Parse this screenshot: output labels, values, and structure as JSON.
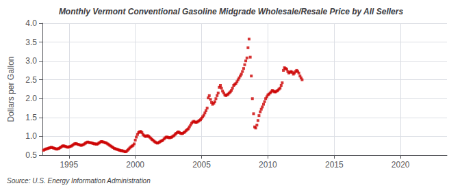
{
  "chart_data": {
    "type": "scatter",
    "title": "Monthly Vermont Conventional Gasoline Midgrade Wholesale/Resale Price by All Sellers",
    "ylabel": "Dollars per Gallon",
    "annotations": [
      "Source: U.S. Energy Information Administration"
    ],
    "color": "#cc0000",
    "marker": "square",
    "grid": true,
    "xlim": [
      1993.0,
      2023.5
    ],
    "xticks": [
      1995,
      2000,
      2005,
      2010,
      2015,
      2020
    ],
    "ylim": [
      0.5,
      4.0
    ],
    "yticks": [
      0.5,
      {
        "value": 1.0,
        "label": "1.0"
      },
      1.5,
      {
        "value": 2.0,
        "label": "2.0"
      },
      2.5,
      {
        "value": 3.0,
        "label": "3.0"
      },
      3.5,
      {
        "value": 4.0,
        "label": "4.0"
      }
    ],
    "x": [
      1993.08,
      1993.17,
      1993.25,
      1993.33,
      1993.42,
      1993.5,
      1993.58,
      1993.67,
      1993.75,
      1993.83,
      1993.92,
      1994.0,
      1994.08,
      1994.17,
      1994.25,
      1994.33,
      1994.42,
      1994.5,
      1994.58,
      1994.67,
      1994.75,
      1994.83,
      1994.92,
      1995.0,
      1995.08,
      1995.17,
      1995.25,
      1995.33,
      1995.42,
      1995.5,
      1995.58,
      1995.67,
      1995.75,
      1995.83,
      1995.92,
      1996.0,
      1996.08,
      1996.17,
      1996.25,
      1996.33,
      1996.42,
      1996.5,
      1996.58,
      1996.67,
      1996.75,
      1996.83,
      1996.92,
      1997.0,
      1997.08,
      1997.17,
      1997.25,
      1997.33,
      1997.42,
      1997.5,
      1997.58,
      1997.67,
      1997.75,
      1997.83,
      1997.92,
      1998.0,
      1998.08,
      1998.17,
      1998.25,
      1998.33,
      1998.42,
      1998.5,
      1998.58,
      1998.67,
      1998.75,
      1998.83,
      1998.92,
      1999.0,
      1999.08,
      1999.17,
      1999.25,
      1999.33,
      1999.42,
      1999.5,
      1999.58,
      1999.67,
      1999.75,
      1999.83,
      1999.92,
      2000.0,
      2000.08,
      2000.17,
      2000.25,
      2000.33,
      2000.42,
      2000.5,
      2000.58,
      2000.67,
      2000.75,
      2000.83,
      2000.92,
      2001.0,
      2001.08,
      2001.17,
      2001.25,
      2001.33,
      2001.42,
      2001.5,
      2001.58,
      2001.67,
      2001.75,
      2001.83,
      2001.92,
      2002.0,
      2002.08,
      2002.17,
      2002.25,
      2002.33,
      2002.42,
      2002.5,
      2002.58,
      2002.67,
      2002.75,
      2002.83,
      2002.92,
      2003.0,
      2003.08,
      2003.17,
      2003.25,
      2003.33,
      2003.42,
      2003.5,
      2003.58,
      2003.67,
      2003.75,
      2003.83,
      2003.92,
      2004.0,
      2004.08,
      2004.17,
      2004.25,
      2004.33,
      2004.42,
      2004.5,
      2004.58,
      2004.67,
      2004.75,
      2004.83,
      2004.92,
      2005.0,
      2005.08,
      2005.17,
      2005.25,
      2005.33,
      2005.42,
      2005.5,
      2005.58,
      2005.67,
      2005.75,
      2005.83,
      2005.92,
      2006.0,
      2006.08,
      2006.17,
      2006.25,
      2006.33,
      2006.42,
      2006.5,
      2006.58,
      2006.67,
      2006.75,
      2006.83,
      2006.92,
      2007.0,
      2007.08,
      2007.17,
      2007.25,
      2007.33,
      2007.42,
      2007.5,
      2007.58,
      2007.67,
      2007.75,
      2007.83,
      2007.92,
      2008.0,
      2008.08,
      2008.17,
      2008.25,
      2008.33,
      2008.42,
      2008.5,
      2008.58,
      2008.67,
      2008.75,
      2008.83,
      2008.92,
      2009.0,
      2009.08,
      2009.17,
      2009.25,
      2009.33,
      2009.42,
      2009.5,
      2009.58,
      2009.67,
      2009.75,
      2009.83,
      2009.92,
      2010.0,
      2010.08,
      2010.17,
      2010.25,
      2010.33,
      2010.42,
      2010.5,
      2010.58,
      2010.67,
      2010.75,
      2010.83,
      2010.92,
      2011.0,
      2011.08,
      2011.17,
      2011.25,
      2011.33,
      2011.42,
      2011.5,
      2011.58,
      2011.67,
      2011.75,
      2011.83,
      2011.92,
      2012.0,
      2012.08,
      2012.17,
      2012.25,
      2012.33,
      2012.42,
      2012.5,
      2012.58
    ],
    "values": [
      0.63,
      0.65,
      0.66,
      0.67,
      0.68,
      0.69,
      0.7,
      0.71,
      0.7,
      0.69,
      0.68,
      0.67,
      0.66,
      0.67,
      0.68,
      0.7,
      0.72,
      0.74,
      0.75,
      0.74,
      0.73,
      0.72,
      0.71,
      0.72,
      0.73,
      0.74,
      0.76,
      0.78,
      0.8,
      0.81,
      0.8,
      0.79,
      0.78,
      0.77,
      0.76,
      0.77,
      0.78,
      0.8,
      0.82,
      0.84,
      0.85,
      0.84,
      0.83,
      0.83,
      0.82,
      0.81,
      0.8,
      0.8,
      0.79,
      0.8,
      0.82,
      0.84,
      0.86,
      0.86,
      0.85,
      0.84,
      0.83,
      0.82,
      0.8,
      0.78,
      0.76,
      0.74,
      0.72,
      0.7,
      0.68,
      0.67,
      0.66,
      0.65,
      0.64,
      0.63,
      0.62,
      0.62,
      0.61,
      0.6,
      0.59,
      0.6,
      0.63,
      0.66,
      0.69,
      0.72,
      0.74,
      0.76,
      0.8,
      0.9,
      0.98,
      1.05,
      1.1,
      1.12,
      1.13,
      1.1,
      1.05,
      1.02,
      1.0,
      1.0,
      1.02,
      1.0,
      0.98,
      0.95,
      0.92,
      0.9,
      0.87,
      0.85,
      0.83,
      0.82,
      0.83,
      0.85,
      0.87,
      0.88,
      0.9,
      0.93,
      0.96,
      0.98,
      0.98,
      0.97,
      0.96,
      0.97,
      0.98,
      1.0,
      1.02,
      1.05,
      1.08,
      1.1,
      1.12,
      1.1,
      1.08,
      1.07,
      1.08,
      1.1,
      1.12,
      1.15,
      1.18,
      1.2,
      1.25,
      1.3,
      1.35,
      1.38,
      1.4,
      1.38,
      1.37,
      1.38,
      1.4,
      1.42,
      1.44,
      1.48,
      1.52,
      1.56,
      1.62,
      1.68,
      1.75,
      2.02,
      2.08,
      1.98,
      1.9,
      1.85,
      1.88,
      1.92,
      2.0,
      2.08,
      2.15,
      2.3,
      2.35,
      2.28,
      2.2,
      2.15,
      2.1,
      2.08,
      2.1,
      2.12,
      2.15,
      2.18,
      2.22,
      2.28,
      2.35,
      2.38,
      2.4,
      2.45,
      2.5,
      2.55,
      2.6,
      2.65,
      2.72,
      2.8,
      2.9,
      3.0,
      3.08,
      3.35,
      3.58,
      3.1,
      2.6,
      2.0,
      1.6,
      1.25,
      1.22,
      1.3,
      1.42,
      1.55,
      1.65,
      1.72,
      1.78,
      1.85,
      1.92,
      2.0,
      2.05,
      2.1,
      2.12,
      2.15,
      2.18,
      2.22,
      2.2,
      2.18,
      2.18,
      2.2,
      2.22,
      2.25,
      2.28,
      2.35,
      2.42,
      2.75,
      2.82,
      2.8,
      2.78,
      2.72,
      2.68,
      2.7,
      2.72,
      2.7,
      2.65,
      2.68,
      2.72,
      2.75,
      2.72,
      2.68,
      2.6,
      2.55,
      2.5
    ]
  }
}
